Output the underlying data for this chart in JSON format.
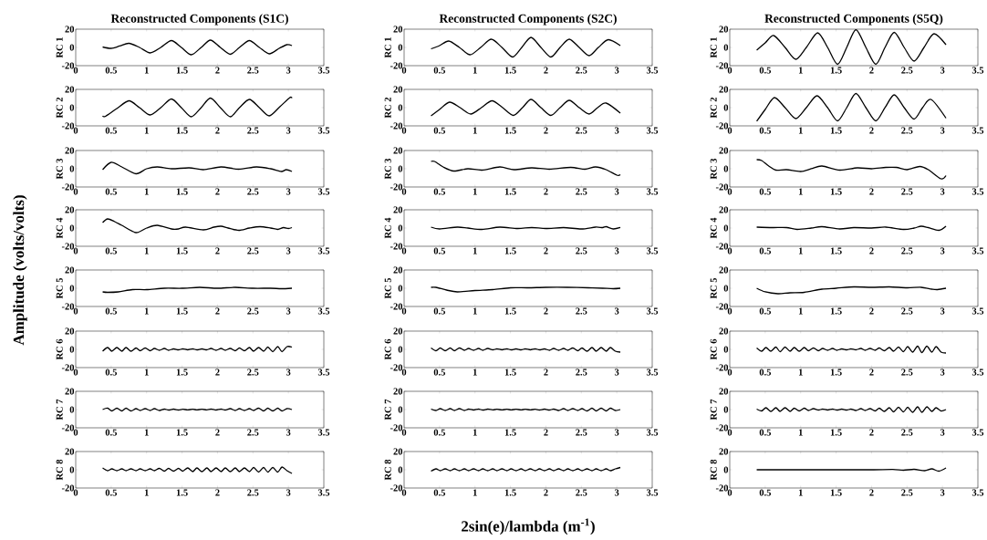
{
  "chart_data": [
    {
      "type": "line",
      "title": "Reconstructed Components (S1C)",
      "ylabel": "RC 1",
      "annotations": [
        "Amplitude (volts/volts)"
      ],
      "color": "#000000",
      "xlim": [
        0,
        3.5
      ],
      "ylim": [
        -20,
        20
      ],
      "xticks": [
        0,
        0.5,
        1,
        1.5,
        2,
        2.5,
        3,
        3.5
      ],
      "yticks": [
        -20,
        0,
        20
      ],
      "x": [
        0.38,
        0.5,
        0.62,
        0.75,
        0.9,
        1.05,
        1.2,
        1.35,
        1.49,
        1.63,
        1.77,
        1.9,
        2.04,
        2.18,
        2.31,
        2.45,
        2.59,
        2.73,
        2.87,
        2.98,
        3.05
      ],
      "values": [
        0.5,
        -1,
        1.5,
        4.5,
        0,
        -6,
        0,
        7.5,
        0,
        -8,
        0,
        8,
        0,
        -7.5,
        0,
        7.5,
        0,
        -7,
        -1,
        3,
        2
      ]
    },
    {
      "type": "line",
      "title": "Reconstructed Components (S2C)",
      "ylabel": "RC 1",
      "color": "#000000",
      "xlim": [
        0,
        3.5
      ],
      "ylim": [
        -20,
        20
      ],
      "xticks": [
        0,
        0.5,
        1,
        1.5,
        2,
        2.5,
        3,
        3.5
      ],
      "yticks": [
        -20,
        0,
        20
      ],
      "x": [
        0.38,
        0.5,
        0.63,
        0.78,
        0.93,
        1.08,
        1.23,
        1.38,
        1.53,
        1.66,
        1.79,
        1.93,
        2.07,
        2.2,
        2.33,
        2.47,
        2.61,
        2.74,
        2.88,
        3.05
      ],
      "values": [
        -1.5,
        2,
        7,
        0,
        -8,
        0,
        9,
        0,
        -10.5,
        0,
        11,
        0,
        -10.5,
        0,
        9,
        0,
        -9,
        0,
        8.5,
        2
      ]
    },
    {
      "type": "line",
      "title": "Reconstructed Components (S5Q)",
      "ylabel": "RC 1",
      "color": "#000000",
      "xlim": [
        0,
        3.5
      ],
      "ylim": [
        -20,
        20
      ],
      "xticks": [
        0,
        0.5,
        1,
        1.5,
        2,
        2.5,
        3,
        3.5
      ],
      "yticks": [
        -20,
        0,
        20
      ],
      "x": [
        0.38,
        0.5,
        0.62,
        0.78,
        0.93,
        1.08,
        1.24,
        1.38,
        1.52,
        1.65,
        1.78,
        1.92,
        2.06,
        2.19,
        2.32,
        2.46,
        2.6,
        2.74,
        2.88,
        3.05
      ],
      "values": [
        -3,
        5,
        13,
        0,
        -13,
        0,
        16,
        0,
        -18.5,
        0,
        19.5,
        0,
        -18.5,
        0,
        16.5,
        0,
        -15,
        0,
        15,
        3
      ]
    },
    {
      "type": "line",
      "ylabel": "RC 2",
      "color": "#000000",
      "xlim": [
        0,
        3.5
      ],
      "ylim": [
        -20,
        20
      ],
      "xticks": [
        0,
        0.5,
        1,
        1.5,
        2,
        2.5,
        3,
        3.5
      ],
      "yticks": [
        -20,
        0,
        20
      ],
      "x": [
        0.38,
        0.42,
        0.58,
        0.75,
        0.9,
        1.05,
        1.2,
        1.35,
        1.49,
        1.63,
        1.77,
        1.9,
        2.04,
        2.18,
        2.31,
        2.45,
        2.59,
        2.73,
        2.88,
        3.02,
        3.05
      ],
      "values": [
        -9,
        -9.5,
        -1,
        7.5,
        0,
        -8,
        0,
        9.5,
        0,
        -10,
        0,
        10.5,
        0,
        -10,
        0,
        9,
        0,
        -9,
        1,
        11,
        10.5
      ]
    },
    {
      "type": "line",
      "ylabel": "RC 2",
      "color": "#000000",
      "xlim": [
        0,
        3.5
      ],
      "ylim": [
        -20,
        20
      ],
      "xticks": [
        0,
        0.5,
        1,
        1.5,
        2,
        2.5,
        3,
        3.5
      ],
      "yticks": [
        -20,
        0,
        20
      ],
      "x": [
        0.38,
        0.5,
        0.64,
        0.79,
        0.94,
        1.09,
        1.24,
        1.39,
        1.54,
        1.67,
        1.79,
        1.93,
        2.07,
        2.2,
        2.33,
        2.47,
        2.61,
        2.73,
        2.85,
        3.05
      ],
      "values": [
        -9,
        -2,
        6,
        0,
        -7,
        0,
        7.5,
        0,
        -8.5,
        0,
        9,
        0,
        -8.5,
        0,
        8,
        0,
        -7,
        0,
        5,
        -6
      ]
    },
    {
      "type": "line",
      "ylabel": "RC 2",
      "color": "#000000",
      "xlim": [
        0,
        3.5
      ],
      "ylim": [
        -20,
        20
      ],
      "xticks": [
        0,
        0.5,
        1,
        1.5,
        2,
        2.5,
        3,
        3.5
      ],
      "yticks": [
        -20,
        0,
        20
      ],
      "x": [
        0.38,
        0.5,
        0.63,
        0.78,
        0.93,
        1.08,
        1.23,
        1.38,
        1.52,
        1.65,
        1.78,
        1.92,
        2.06,
        2.19,
        2.32,
        2.46,
        2.6,
        2.72,
        2.84,
        3.05
      ],
      "values": [
        -15,
        -2,
        11,
        0,
        -12,
        0,
        13,
        0,
        -14.5,
        0,
        15.5,
        0,
        -14.5,
        0,
        14,
        0,
        -12.5,
        0,
        9,
        -11.5
      ]
    },
    {
      "type": "line",
      "ylabel": "RC 3",
      "color": "#000000",
      "xlim": [
        0,
        3.5
      ],
      "ylim": [
        -20,
        20
      ],
      "xticks": [
        0,
        0.5,
        1,
        1.5,
        2,
        2.5,
        3,
        3.5
      ],
      "yticks": [
        -20,
        0,
        20
      ],
      "x": [
        0.38,
        0.5,
        0.65,
        0.85,
        1.0,
        1.15,
        1.35,
        1.6,
        1.8,
        2.05,
        2.3,
        2.55,
        2.75,
        2.9,
        2.97,
        3.05
      ],
      "values": [
        -1,
        7,
        2,
        -5.5,
        0,
        2,
        0,
        1,
        -1,
        2,
        -0.5,
        2,
        0,
        -3,
        -1,
        -3
      ]
    },
    {
      "type": "line",
      "ylabel": "RC 3",
      "color": "#000000",
      "xlim": [
        0,
        3.5
      ],
      "ylim": [
        -20,
        20
      ],
      "xticks": [
        0,
        0.5,
        1,
        1.5,
        2,
        2.5,
        3,
        3.5
      ],
      "yticks": [
        -20,
        0,
        20
      ],
      "x": [
        0.38,
        0.43,
        0.55,
        0.7,
        0.9,
        1.1,
        1.35,
        1.55,
        1.8,
        2.05,
        2.35,
        2.55,
        2.7,
        2.85,
        3.0,
        3.05
      ],
      "values": [
        8,
        8,
        2,
        -2.5,
        0,
        -1.5,
        2,
        -1,
        1,
        -0.5,
        1.5,
        -0.5,
        2,
        -1,
        -7,
        -6.5
      ]
    },
    {
      "type": "line",
      "ylabel": "RC 3",
      "color": "#000000",
      "xlim": [
        0,
        3.5
      ],
      "ylim": [
        -20,
        20
      ],
      "xticks": [
        0,
        0.5,
        1,
        1.5,
        2,
        2.5,
        3,
        3.5
      ],
      "yticks": [
        -20,
        0,
        20
      ],
      "x": [
        0.38,
        0.45,
        0.55,
        0.65,
        0.8,
        1.0,
        1.15,
        1.3,
        1.55,
        1.8,
        2.0,
        2.2,
        2.35,
        2.5,
        2.68,
        2.8,
        2.98,
        3.05
      ],
      "values": [
        10,
        9,
        3,
        -1.5,
        -1,
        -3,
        0,
        3,
        -1.5,
        1,
        0,
        1.5,
        1.5,
        -1,
        2.5,
        -1,
        -11,
        -7.5
      ]
    },
    {
      "type": "line",
      "ylabel": "RC 4",
      "color": "#000000",
      "xlim": [
        0,
        3.5
      ],
      "ylim": [
        -20,
        20
      ],
      "xticks": [
        0,
        0.5,
        1,
        1.5,
        2,
        2.5,
        3,
        3.5
      ],
      "yticks": [
        -20,
        0,
        20
      ],
      "x": [
        0.38,
        0.45,
        0.55,
        0.65,
        0.85,
        1.0,
        1.15,
        1.35,
        1.45,
        1.55,
        1.8,
        1.95,
        2.05,
        2.15,
        2.3,
        2.45,
        2.6,
        2.75,
        2.85,
        2.93,
        3.0,
        3.05
      ],
      "values": [
        6,
        10,
        7,
        3,
        -5,
        0,
        3,
        -1,
        -1,
        1,
        -2,
        1,
        2,
        0,
        -2.5,
        0,
        1.5,
        0,
        -1.5,
        0.5,
        -0.5,
        0.5
      ]
    },
    {
      "type": "line",
      "ylabel": "RC 4",
      "color": "#000000",
      "xlim": [
        0,
        3.5
      ],
      "ylim": [
        -20,
        20
      ],
      "xticks": [
        0,
        0.5,
        1,
        1.5,
        2,
        2.5,
        3,
        3.5
      ],
      "yticks": [
        -20,
        0,
        20
      ],
      "x": [
        0.38,
        0.5,
        0.75,
        0.9,
        1.1,
        1.35,
        1.6,
        1.8,
        2.0,
        2.25,
        2.5,
        2.7,
        2.8,
        2.85,
        2.95,
        3.05
      ],
      "values": [
        1,
        -1,
        1,
        0,
        -1.5,
        1,
        -0.5,
        0.5,
        -0.5,
        0.5,
        -1,
        1,
        0.5,
        1.5,
        -1,
        0.5
      ]
    },
    {
      "type": "line",
      "ylabel": "RC 4",
      "color": "#000000",
      "xlim": [
        0,
        3.5
      ],
      "ylim": [
        -20,
        20
      ],
      "xticks": [
        0,
        0.5,
        1,
        1.5,
        2,
        2.5,
        3,
        3.5
      ],
      "yticks": [
        -20,
        0,
        20
      ],
      "x": [
        0.38,
        0.6,
        0.8,
        0.95,
        1.15,
        1.3,
        1.55,
        1.75,
        2.0,
        2.2,
        2.45,
        2.6,
        2.7,
        2.8,
        2.95,
        3.05
      ],
      "values": [
        1,
        0.5,
        0.5,
        -1.5,
        0,
        1.5,
        -1,
        0.5,
        0,
        1,
        -1.5,
        0,
        2,
        0.5,
        -2.5,
        2
      ]
    },
    {
      "type": "line",
      "ylabel": "RC 5",
      "color": "#000000",
      "xlim": [
        0,
        3.5
      ],
      "ylim": [
        -20,
        20
      ],
      "xticks": [
        0,
        0.5,
        1,
        1.5,
        2,
        2.5,
        3,
        3.5
      ],
      "yticks": [
        -20,
        0,
        20
      ],
      "x": [
        0.38,
        0.45,
        0.6,
        0.8,
        1.0,
        1.25,
        1.5,
        1.75,
        2.0,
        2.25,
        2.5,
        2.75,
        2.9,
        3.05
      ],
      "values": [
        -4,
        -4.5,
        -4,
        -1.5,
        -1.5,
        0,
        0,
        1,
        0,
        1,
        0,
        0,
        -0.5,
        0
      ]
    },
    {
      "type": "line",
      "ylabel": "RC 5",
      "color": "#000000",
      "xlim": [
        0,
        3.5
      ],
      "ylim": [
        -20,
        20
      ],
      "xticks": [
        0,
        0.5,
        1,
        1.5,
        2,
        2.5,
        3,
        3.5
      ],
      "yticks": [
        -20,
        0,
        20
      ],
      "x": [
        0.38,
        0.45,
        0.6,
        0.75,
        1.0,
        1.25,
        1.5,
        1.75,
        2.0,
        2.3,
        2.6,
        2.8,
        2.95,
        3.05
      ],
      "values": [
        1,
        1,
        -2,
        -4,
        -2.5,
        -1.5,
        0.5,
        0.5,
        1,
        1,
        0.5,
        0,
        -0.5,
        0
      ]
    },
    {
      "type": "line",
      "ylabel": "RC 5",
      "color": "#000000",
      "xlim": [
        0,
        3.5
      ],
      "ylim": [
        -20,
        20
      ],
      "xticks": [
        0,
        0.5,
        1,
        1.5,
        2,
        2.5,
        3,
        3.5
      ],
      "yticks": [
        -20,
        0,
        20
      ],
      "x": [
        0.38,
        0.5,
        0.68,
        0.85,
        1.05,
        1.3,
        1.5,
        1.75,
        2.0,
        2.25,
        2.5,
        2.7,
        2.85,
        2.93,
        3.05
      ],
      "values": [
        0,
        -4,
        -6,
        -5,
        -4.5,
        -1,
        0,
        1.5,
        1,
        1.5,
        0.5,
        1,
        -1,
        -1.5,
        0
      ]
    },
    {
      "type": "line",
      "ylabel": "RC 6",
      "color": "#000000",
      "xlim": [
        0,
        3.5
      ],
      "ylim": [
        -20,
        20
      ],
      "xticks": [
        0,
        0.5,
        1,
        1.5,
        2,
        2.5,
        3,
        3.5
      ],
      "yticks": [
        -20,
        0,
        20
      ],
      "x": [
        0.38,
        0.45,
        0.51,
        0.58,
        0.65,
        0.71,
        0.78,
        0.85,
        0.91,
        0.98,
        1.05,
        1.11,
        1.18,
        1.25,
        1.31,
        1.38,
        1.45,
        1.51,
        1.58,
        1.65,
        1.71,
        1.78,
        1.85,
        1.91,
        1.98,
        2.05,
        2.11,
        2.18,
        2.25,
        2.31,
        2.38,
        2.45,
        2.51,
        2.58,
        2.65,
        2.71,
        2.78,
        2.85,
        2.91,
        2.98,
        3.05
      ],
      "values": [
        -2,
        2,
        -2,
        2,
        -2,
        2,
        -2,
        1.5,
        -1.5,
        1.5,
        -1.5,
        1,
        -1,
        1,
        -1,
        0.5,
        -0.5,
        0.5,
        -0.5,
        0.5,
        -0.5,
        0.5,
        -0.5,
        1,
        -1,
        1,
        -1,
        1,
        -1.5,
        1.5,
        -1.5,
        2,
        -2,
        2,
        -2,
        2.5,
        -2.5,
        3,
        -2.5,
        3,
        2.5
      ]
    },
    {
      "type": "line",
      "ylabel": "RC 6",
      "color": "#000000",
      "xlim": [
        0,
        3.5
      ],
      "ylim": [
        -20,
        20
      ],
      "xticks": [
        0,
        0.5,
        1,
        1.5,
        2,
        2.5,
        3,
        3.5
      ],
      "yticks": [
        -20,
        0,
        20
      ],
      "x": [
        0.38,
        0.45,
        0.51,
        0.58,
        0.65,
        0.71,
        0.78,
        0.85,
        0.91,
        0.98,
        1.05,
        1.11,
        1.18,
        1.25,
        1.31,
        1.38,
        1.45,
        1.51,
        1.58,
        1.65,
        1.71,
        1.78,
        1.85,
        1.91,
        1.98,
        2.05,
        2.11,
        2.18,
        2.25,
        2.31,
        2.38,
        2.45,
        2.51,
        2.58,
        2.65,
        2.71,
        2.78,
        2.85,
        2.91,
        2.98,
        3.05
      ],
      "values": [
        1.5,
        -1.5,
        1.5,
        -1.5,
        1.5,
        -1.5,
        1.5,
        -1,
        1,
        -1,
        1,
        -1,
        1,
        -0.5,
        0.5,
        -0.5,
        0.5,
        -0.5,
        0.5,
        -0.5,
        0.5,
        -0.5,
        0.5,
        -0.5,
        0.5,
        -1,
        1,
        -1,
        1,
        -1,
        1.5,
        -1.5,
        1.5,
        -2,
        2,
        -2,
        2,
        -2,
        2,
        -2,
        -3
      ]
    },
    {
      "type": "line",
      "ylabel": "RC 6",
      "color": "#000000",
      "xlim": [
        0,
        3.5
      ],
      "ylim": [
        -20,
        20
      ],
      "xticks": [
        0,
        0.5,
        1,
        1.5,
        2,
        2.5,
        3,
        3.5
      ],
      "yticks": [
        -20,
        0,
        20
      ],
      "x": [
        0.38,
        0.45,
        0.51,
        0.58,
        0.65,
        0.71,
        0.78,
        0.85,
        0.91,
        0.98,
        1.05,
        1.11,
        1.18,
        1.25,
        1.31,
        1.38,
        1.45,
        1.51,
        1.58,
        1.65,
        1.71,
        1.78,
        1.85,
        1.91,
        1.98,
        2.05,
        2.11,
        2.18,
        2.25,
        2.31,
        2.38,
        2.45,
        2.51,
        2.58,
        2.65,
        2.71,
        2.78,
        2.85,
        2.91,
        2.98,
        3.05
      ],
      "values": [
        1.5,
        -2,
        2,
        -2,
        2.5,
        -2.5,
        2.5,
        -2,
        2,
        -2,
        2,
        -1.5,
        1.5,
        -1.5,
        1,
        -1,
        1,
        -1,
        0.5,
        -0.5,
        0.5,
        -0.5,
        1,
        -1,
        1,
        -1,
        1.5,
        -1.5,
        2,
        -2,
        2.5,
        -2.5,
        3,
        -3,
        3.5,
        -3.5,
        3.5,
        -3,
        3,
        -3,
        -4
      ]
    },
    {
      "type": "line",
      "ylabel": "RC 7",
      "color": "#000000",
      "xlim": [
        0,
        3.5
      ],
      "ylim": [
        -20,
        20
      ],
      "xticks": [
        0,
        0.5,
        1,
        1.5,
        2,
        2.5,
        3,
        3.5
      ],
      "yticks": [
        -20,
        0,
        20
      ],
      "x": [
        0.38,
        0.45,
        0.51,
        0.58,
        0.65,
        0.71,
        0.78,
        0.85,
        0.91,
        0.98,
        1.05,
        1.11,
        1.18,
        1.25,
        1.31,
        1.38,
        1.45,
        1.51,
        1.58,
        1.65,
        1.71,
        1.78,
        1.85,
        1.91,
        1.98,
        2.05,
        2.11,
        2.18,
        2.25,
        2.31,
        2.38,
        2.45,
        2.51,
        2.58,
        2.65,
        2.71,
        2.78,
        2.85,
        2.91,
        2.98,
        3.05
      ],
      "values": [
        0,
        1.5,
        -1.5,
        1.5,
        -1.5,
        1.5,
        -1.5,
        1,
        -1,
        1,
        -1,
        1,
        -1,
        0.5,
        -0.5,
        0.5,
        -0.5,
        0.3,
        -0.3,
        0.3,
        -0.3,
        0.3,
        -0.3,
        0.5,
        -0.5,
        0.5,
        -0.5,
        1,
        -1,
        1,
        -1,
        1,
        -1,
        1.5,
        -1.5,
        1.5,
        -1.5,
        1.5,
        -1.5,
        1,
        0
      ]
    },
    {
      "type": "line",
      "ylabel": "RC 7",
      "color": "#000000",
      "xlim": [
        0,
        3.5
      ],
      "ylim": [
        -20,
        20
      ],
      "xticks": [
        0,
        0.5,
        1,
        1.5,
        2,
        2.5,
        3,
        3.5
      ],
      "yticks": [
        -20,
        0,
        20
      ],
      "x": [
        0.38,
        0.45,
        0.51,
        0.58,
        0.65,
        0.71,
        0.78,
        0.85,
        0.91,
        0.98,
        1.05,
        1.11,
        1.18,
        1.25,
        1.31,
        1.38,
        1.45,
        1.51,
        1.58,
        1.65,
        1.71,
        1.78,
        1.85,
        1.91,
        1.98,
        2.05,
        2.11,
        2.18,
        2.25,
        2.31,
        2.38,
        2.45,
        2.51,
        2.58,
        2.65,
        2.71,
        2.78,
        2.85,
        2.91,
        2.98,
        3.05
      ],
      "values": [
        0.5,
        -1,
        1,
        -1,
        1,
        -1,
        1,
        -1,
        0.5,
        -0.5,
        0.5,
        -0.5,
        0.5,
        -0.3,
        0.3,
        -0.3,
        0.3,
        -0.3,
        0.3,
        -0.3,
        0.3,
        -0.3,
        0.3,
        -0.5,
        0.5,
        -0.5,
        0.5,
        -1,
        1,
        -1,
        1,
        -1,
        1,
        -1.5,
        1.5,
        -1.5,
        1.5,
        -1.5,
        1.5,
        -1,
        0
      ]
    },
    {
      "type": "line",
      "ylabel": "RC 7",
      "color": "#000000",
      "xlim": [
        0,
        3.5
      ],
      "ylim": [
        -20,
        20
      ],
      "xticks": [
        0,
        0.5,
        1,
        1.5,
        2,
        2.5,
        3,
        3.5
      ],
      "yticks": [
        -20,
        0,
        20
      ],
      "x": [
        0.38,
        0.45,
        0.51,
        0.58,
        0.65,
        0.71,
        0.78,
        0.85,
        0.91,
        0.98,
        1.05,
        1.11,
        1.18,
        1.25,
        1.31,
        1.38,
        1.45,
        1.51,
        1.58,
        1.65,
        1.71,
        1.78,
        1.85,
        1.91,
        1.98,
        2.05,
        2.11,
        2.18,
        2.25,
        2.31,
        2.38,
        2.45,
        2.51,
        2.58,
        2.65,
        2.71,
        2.78,
        2.85,
        2.91,
        2.98,
        3.05
      ],
      "values": [
        0.5,
        -1.5,
        2,
        -2,
        2,
        -2,
        2,
        -2,
        1.5,
        -1.5,
        1.5,
        -1,
        1,
        -0.5,
        0.5,
        -0.5,
        0.5,
        -0.5,
        0.5,
        -0.5,
        0.5,
        -1,
        1,
        -1,
        1,
        -1.5,
        1.5,
        -2,
        2,
        -2.5,
        2.5,
        -2.5,
        2.5,
        -3,
        3,
        -3,
        3,
        -2,
        2,
        -1.5,
        0
      ]
    },
    {
      "type": "line",
      "ylabel": "RC 8",
      "color": "#000000",
      "xlim": [
        0,
        3.5
      ],
      "ylim": [
        -20,
        20
      ],
      "xticks": [
        0,
        0.5,
        1,
        1.5,
        2,
        2.5,
        3,
        3.5
      ],
      "yticks": [
        -20,
        0,
        20
      ],
      "x": [
        0.38,
        0.45,
        0.51,
        0.58,
        0.65,
        0.71,
        0.78,
        0.85,
        0.91,
        0.98,
        1.05,
        1.11,
        1.18,
        1.25,
        1.31,
        1.38,
        1.45,
        1.51,
        1.58,
        1.65,
        1.71,
        1.78,
        1.85,
        1.91,
        1.98,
        2.05,
        2.11,
        2.18,
        2.25,
        2.31,
        2.38,
        2.45,
        2.51,
        2.58,
        2.65,
        2.71,
        2.78,
        2.85,
        2.91,
        2.98,
        3.05
      ],
      "values": [
        2,
        -1,
        1,
        -1,
        1,
        -1,
        1,
        -1,
        1,
        -1,
        1,
        -1,
        1.5,
        -1.5,
        1.5,
        -1.5,
        1.5,
        -1.5,
        2,
        -2,
        2,
        -2,
        2,
        -2,
        2,
        -2,
        2,
        -2,
        2,
        -2,
        2,
        -2,
        2.5,
        -2.5,
        2.5,
        -2.5,
        2.5,
        -2.5,
        3,
        -1,
        -4
      ]
    },
    {
      "type": "line",
      "ylabel": "RC 8",
      "xlabel": "2sin(e)/lambda (m$^{-1}$)",
      "color": "#000000",
      "xlim": [
        0,
        3.5
      ],
      "ylim": [
        -20,
        20
      ],
      "xticks": [
        0,
        0.5,
        1,
        1.5,
        2,
        2.5,
        3,
        3.5
      ],
      "yticks": [
        -20,
        0,
        20
      ],
      "x": [
        0.38,
        0.45,
        0.51,
        0.58,
        0.65,
        0.71,
        0.78,
        0.85,
        0.91,
        0.98,
        1.05,
        1.11,
        1.18,
        1.25,
        1.31,
        1.38,
        1.45,
        1.51,
        1.58,
        1.65,
        1.71,
        1.78,
        1.85,
        1.91,
        1.98,
        2.05,
        2.11,
        2.18,
        2.25,
        2.31,
        2.38,
        2.45,
        2.51,
        2.58,
        2.65,
        2.71,
        2.78,
        2.85,
        2.91,
        2.98,
        3.05
      ],
      "values": [
        -1.5,
        1,
        -1,
        1,
        -1,
        1,
        -1,
        1,
        -1,
        1,
        -1,
        1,
        -1,
        1,
        -1,
        1,
        -1,
        1,
        -1,
        1,
        -1,
        1,
        -1,
        1,
        -1,
        1,
        -1,
        1,
        -1,
        1,
        -1,
        1,
        -1,
        1,
        -1,
        1,
        -1,
        1,
        -1,
        1,
        2.5
      ]
    },
    {
      "type": "line",
      "ylabel": "RC 8",
      "color": "#000000",
      "xlim": [
        0,
        3.5
      ],
      "ylim": [
        -20,
        20
      ],
      "xticks": [
        0,
        0.5,
        1,
        1.5,
        2,
        2.5,
        3,
        3.5
      ],
      "yticks": [
        -20,
        0,
        20
      ],
      "x": [
        0.38,
        1.0,
        1.5,
        2.0,
        2.3,
        2.45,
        2.6,
        2.75,
        2.85,
        2.95,
        3.05
      ],
      "values": [
        0,
        0,
        0,
        0,
        0.3,
        -0.5,
        0.5,
        -1,
        1,
        -1.5,
        2
      ]
    }
  ]
}
